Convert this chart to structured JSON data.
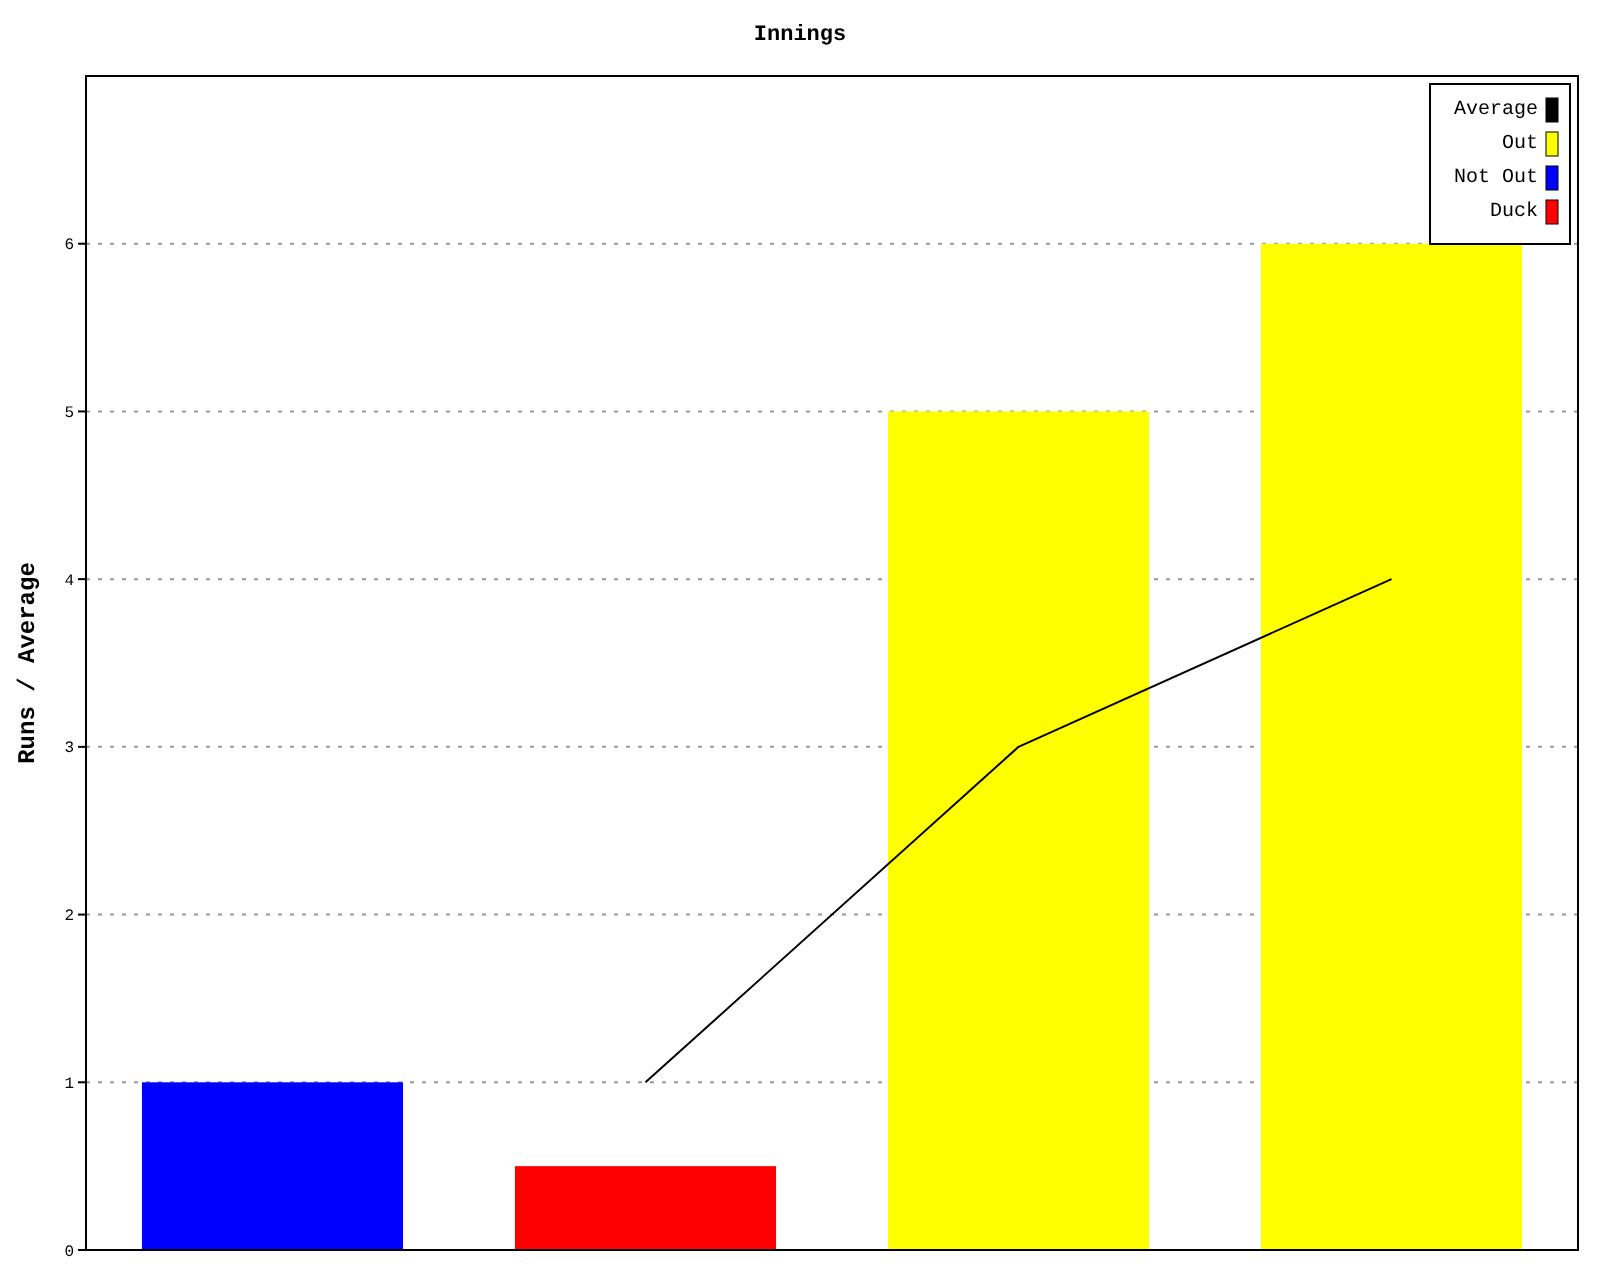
{
  "chart_data": {
    "type": "bar",
    "title": "Innings",
    "ylabel": "Runs / Average",
    "categories": [
      null,
      null,
      null,
      null
    ],
    "series": [
      {
        "name": "Average",
        "type": "line",
        "color": "#000000",
        "values": [
          null,
          1,
          3,
          4
        ]
      },
      {
        "name": "Out",
        "color": "#ffff00",
        "values": [
          null,
          null,
          5,
          6
        ]
      },
      {
        "name": "Not Out",
        "color": "#0000ff",
        "values": [
          1,
          null,
          null,
          null
        ]
      },
      {
        "name": "Duck",
        "color": "#ff0000",
        "values": [
          null,
          0.5,
          null,
          null
        ]
      }
    ],
    "ylim": [
      0,
      7
    ],
    "yticks": [
      0,
      1,
      2,
      3,
      4,
      5,
      6
    ],
    "grid": "y",
    "legend": "top right",
    "marker": "none"
  }
}
